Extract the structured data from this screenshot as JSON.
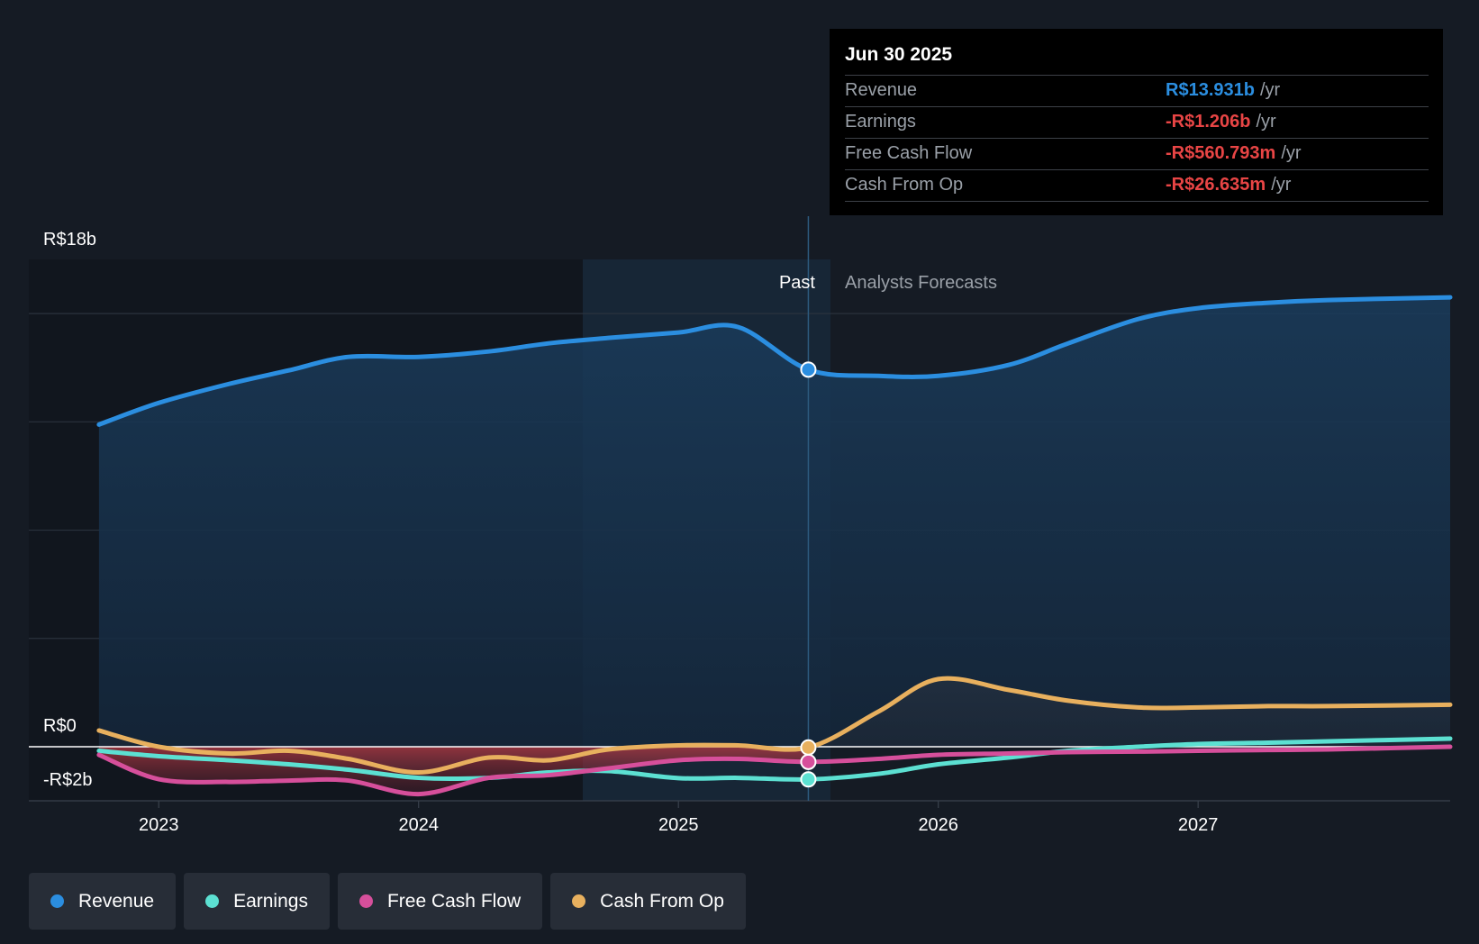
{
  "chart_data": {
    "type": "area",
    "currency": "R$",
    "y_axis": {
      "max_label": "R$18b",
      "zero_label": "R$0",
      "min_label": "-R$2b",
      "ylim": [
        -2,
        18
      ]
    },
    "x_ticks": [
      "2023",
      "2024",
      "2025",
      "2026",
      "2027"
    ],
    "xlim": [
      2022.5,
      2027.97
    ],
    "divider_x": 2025.5,
    "past_label": "Past",
    "forecast_label": "Analysts Forecasts",
    "series": [
      {
        "name": "Revenue",
        "color": "#2b8ee0",
        "x": [
          2022.77,
          2023.0,
          2023.27,
          2023.5,
          2023.73,
          2024.0,
          2024.27,
          2024.5,
          2024.73,
          2025.0,
          2025.23,
          2025.5,
          2025.77,
          2026.0,
          2026.27,
          2026.5,
          2026.77,
          2027.0,
          2027.27,
          2027.5,
          2027.97
        ],
        "values": [
          11.9,
          12.7,
          13.4,
          13.9,
          14.4,
          14.4,
          14.6,
          14.9,
          15.1,
          15.3,
          15.5,
          13.93,
          13.7,
          13.7,
          14.1,
          14.9,
          15.8,
          16.2,
          16.4,
          16.5,
          16.6
        ]
      },
      {
        "name": "Earnings",
        "color": "#5ce0d2",
        "x": [
          2022.77,
          2023.0,
          2023.27,
          2023.5,
          2023.73,
          2024.0,
          2024.27,
          2024.5,
          2024.73,
          2025.0,
          2025.23,
          2025.5,
          2025.77,
          2026.0,
          2026.27,
          2026.5,
          2026.77,
          2027.0,
          2027.27,
          2027.5,
          2027.97
        ],
        "values": [
          -0.15,
          -0.35,
          -0.5,
          -0.65,
          -0.85,
          -1.15,
          -1.15,
          -0.95,
          -0.9,
          -1.16,
          -1.15,
          -1.206,
          -1.0,
          -0.65,
          -0.4,
          -0.15,
          0.0,
          0.1,
          0.15,
          0.2,
          0.3
        ]
      },
      {
        "name": "Free Cash Flow",
        "color": "#d64f9b",
        "x": [
          2022.77,
          2023.0,
          2023.27,
          2023.5,
          2023.73,
          2024.0,
          2024.27,
          2024.5,
          2024.73,
          2025.0,
          2025.23,
          2025.5,
          2025.77,
          2026.0,
          2026.27,
          2026.5,
          2026.77,
          2027.0,
          2027.27,
          2027.5,
          2027.97
        ],
        "values": [
          -0.3,
          -1.2,
          -1.3,
          -1.25,
          -1.25,
          -1.75,
          -1.15,
          -1.05,
          -0.8,
          -0.5,
          -0.45,
          -0.561,
          -0.45,
          -0.3,
          -0.25,
          -0.2,
          -0.18,
          -0.15,
          -0.12,
          -0.1,
          0.0
        ]
      },
      {
        "name": "Cash From Op",
        "color": "#e8b05e",
        "x": [
          2022.77,
          2023.0,
          2023.27,
          2023.5,
          2023.73,
          2024.0,
          2024.27,
          2024.5,
          2024.73,
          2025.0,
          2025.23,
          2025.5,
          2025.77,
          2026.0,
          2026.27,
          2026.5,
          2026.77,
          2027.0,
          2027.27,
          2027.5,
          2027.97
        ],
        "values": [
          0.6,
          0.0,
          -0.25,
          -0.15,
          -0.45,
          -0.95,
          -0.4,
          -0.5,
          -0.1,
          0.05,
          0.05,
          -0.027,
          1.3,
          2.5,
          2.1,
          1.7,
          1.45,
          1.45,
          1.5,
          1.5,
          1.55
        ]
      }
    ]
  },
  "tooltip": {
    "date": "Jun 30 2025",
    "rows": [
      {
        "label": "Revenue",
        "value": "R$13.931b",
        "unit": "/yr",
        "color": "#2b8ee0"
      },
      {
        "label": "Earnings",
        "value": "-R$1.206b",
        "unit": "/yr",
        "color": "#e84545"
      },
      {
        "label": "Free Cash Flow",
        "value": "-R$560.793m",
        "unit": "/yr",
        "color": "#e84545"
      },
      {
        "label": "Cash From Op",
        "value": "-R$26.635m",
        "unit": "/yr",
        "color": "#e84545"
      }
    ]
  },
  "legend": [
    {
      "label": "Revenue",
      "color": "#2b8ee0"
    },
    {
      "label": "Earnings",
      "color": "#5ce0d2"
    },
    {
      "label": "Free Cash Flow",
      "color": "#d64f9b"
    },
    {
      "label": "Cash From Op",
      "color": "#e8b05e"
    }
  ]
}
